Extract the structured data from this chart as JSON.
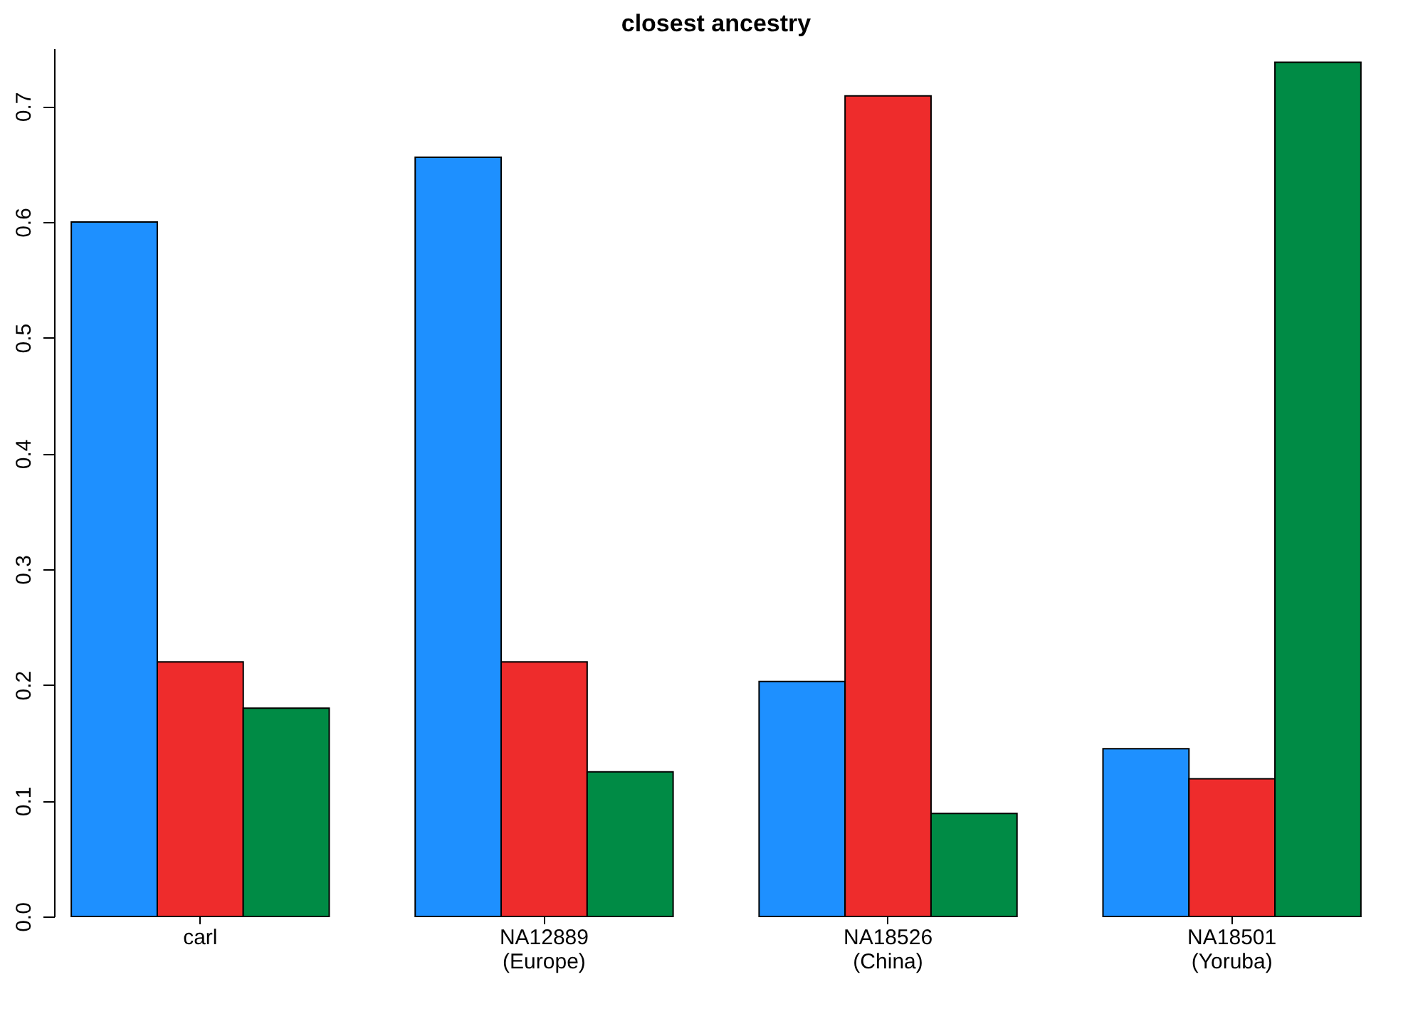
{
  "chart_data": {
    "type": "bar",
    "title": "closest ancestry",
    "categories": [
      "carl",
      "NA12889\n(Europe)",
      "NA18526\n(China)",
      "NA18501\n(Yoruba)"
    ],
    "series": [
      {
        "color": "#1e90ff",
        "values": [
          0.6,
          0.656,
          0.203,
          0.145
        ]
      },
      {
        "color": "#ee2c2c",
        "values": [
          0.22,
          0.22,
          0.709,
          0.119
        ]
      },
      {
        "color": "#008b45",
        "values": [
          0.18,
          0.125,
          0.089,
          0.738
        ]
      }
    ],
    "ylim": [
      0,
      0.75
    ],
    "yticks": [
      {
        "value": 0,
        "label": "0.0"
      },
      {
        "value": 0.1,
        "label": "0.1"
      },
      {
        "value": 0.2,
        "label": "0.2"
      },
      {
        "value": 0.3,
        "label": "0.3"
      },
      {
        "value": 0.4,
        "label": "0.4"
      },
      {
        "value": 0.5,
        "label": "0.5"
      },
      {
        "value": 0.6,
        "label": "0.6"
      },
      {
        "value": 0.7,
        "label": "0.7"
      }
    ],
    "grid": false,
    "legend": false
  }
}
